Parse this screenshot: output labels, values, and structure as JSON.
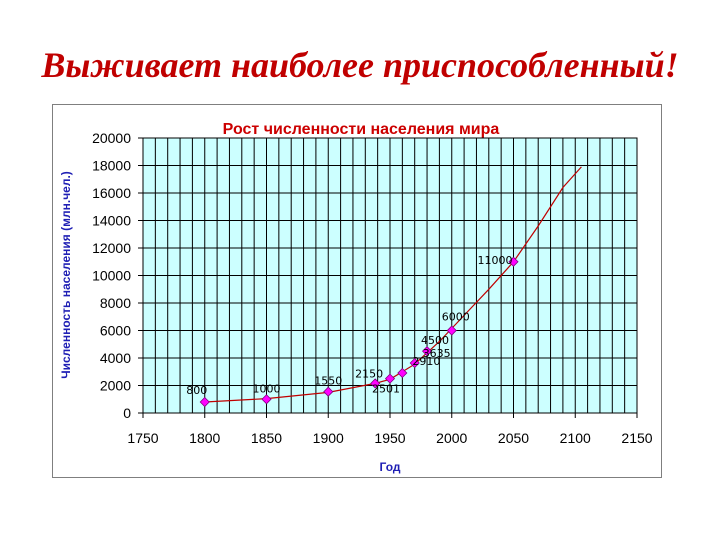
{
  "slide": {
    "title": "Выживает наиболее приспособленный!"
  },
  "colors": {
    "title": "#c00000",
    "plot_background": "#ccffff",
    "grid": "#000000",
    "line": "#c00000",
    "marker": "#ff00ff",
    "chart_title": "#cc0000",
    "axis_label": "#1f1fb4"
  },
  "chart_data": {
    "type": "scatter",
    "title": "Рост численности населения мира",
    "xlabel": "Год",
    "ylabel": "Численность населения (млн.чел.)",
    "xlim": [
      1750,
      2150
    ],
    "ylim": [
      0,
      20000
    ],
    "x_ticks": [
      1750,
      1800,
      1850,
      1900,
      1950,
      2000,
      2050,
      2100,
      2150
    ],
    "y_ticks": [
      0,
      2000,
      4000,
      6000,
      8000,
      10000,
      12000,
      14000,
      16000,
      18000,
      20000
    ],
    "x_minor_step": 10,
    "grid": true,
    "legend": "none",
    "series": [
      {
        "points": [
          {
            "x": 1800,
            "y": 800,
            "label": "800"
          },
          {
            "x": 1850,
            "y": 1000,
            "label": "1000"
          },
          {
            "x": 1900,
            "y": 1550,
            "label": "1550"
          },
          {
            "x": 1938,
            "y": 2150,
            "label": "2150"
          },
          {
            "x": 1950,
            "y": 2501,
            "label": "2501"
          },
          {
            "x": 1960,
            "y": 2910,
            "label": "2910"
          },
          {
            "x": 1970,
            "y": 3635,
            "label": "3635"
          },
          {
            "x": 1980,
            "y": 4500,
            "label": "4500"
          },
          {
            "x": 2000,
            "y": 6000,
            "label": "6000"
          },
          {
            "x": 2050,
            "y": 11000,
            "label": "11000"
          }
        ],
        "trend": [
          {
            "x": 1800,
            "y": 800
          },
          {
            "x": 1850,
            "y": 1050
          },
          {
            "x": 1900,
            "y": 1500
          },
          {
            "x": 1938,
            "y": 2150
          },
          {
            "x": 1950,
            "y": 2450
          },
          {
            "x": 1970,
            "y": 3550
          },
          {
            "x": 1990,
            "y": 5200
          },
          {
            "x": 2010,
            "y": 7100
          },
          {
            "x": 2030,
            "y": 9000
          },
          {
            "x": 2050,
            "y": 11000
          },
          {
            "x": 2070,
            "y": 13600
          },
          {
            "x": 2090,
            "y": 16400
          },
          {
            "x": 2105,
            "y": 17900
          }
        ]
      }
    ]
  }
}
